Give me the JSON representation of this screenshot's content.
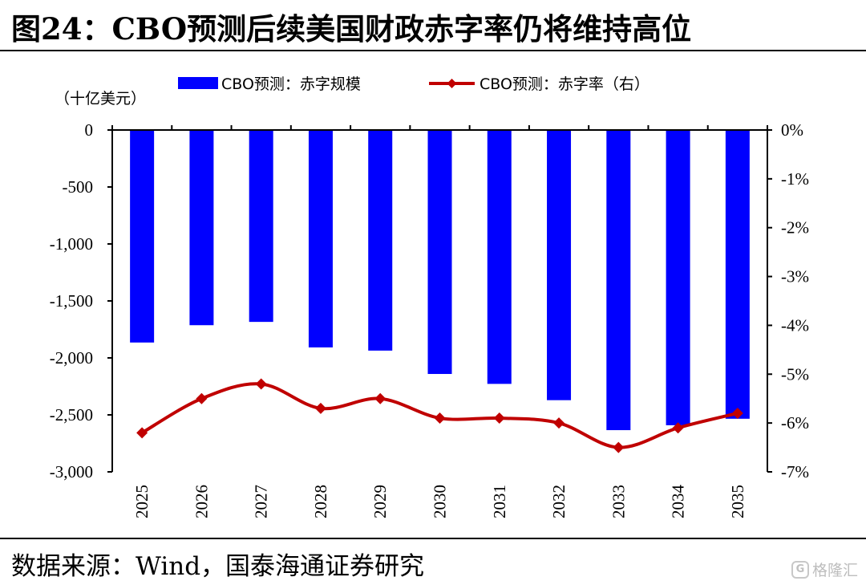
{
  "header": {
    "title": "图24：CBO预测后续美国财政赤字率仍将维持高位"
  },
  "footer": {
    "source": "数据来源：Wind，国泰海通证券研究",
    "watermark_text": "格隆汇",
    "watermark_icon": "G"
  },
  "chart_data": {
    "type": "bar",
    "unit_label": "（十亿美元）",
    "categories": [
      "2025",
      "2026",
      "2027",
      "2028",
      "2029",
      "2030",
      "2031",
      "2032",
      "2033",
      "2034",
      "2035"
    ],
    "series": [
      {
        "name": "CBO预测：赤字规模",
        "type": "bar",
        "axis": "left",
        "color": "#0000ff",
        "values": [
          -1865,
          -1713,
          -1684,
          -1908,
          -1936,
          -2141,
          -2228,
          -2371,
          -2634,
          -2591,
          -2534
        ]
      },
      {
        "name": "CBO预测：赤字率（右）",
        "type": "line",
        "axis": "right",
        "color": "#c00000",
        "values": [
          -6.2,
          -5.5,
          -5.2,
          -5.7,
          -5.5,
          -5.9,
          -5.9,
          -6.0,
          -6.5,
          -6.1,
          -5.8
        ]
      }
    ],
    "y_left": {
      "min": -3000,
      "max": 0,
      "ticks": [
        0,
        -500,
        -1000,
        -1500,
        -2000,
        -2500,
        -3000
      ],
      "tick_labels": [
        "0",
        "-500",
        "-1,000",
        "-1,500",
        "-2,000",
        "-2,500",
        "-3,000"
      ]
    },
    "y_right": {
      "min": -7,
      "max": 0,
      "ticks": [
        0,
        -1,
        -2,
        -3,
        -4,
        -5,
        -6,
        -7
      ],
      "tick_labels": [
        "0%",
        "-1%",
        "-2%",
        "-3%",
        "-4%",
        "-5%",
        "-6%",
        "-7%"
      ]
    },
    "grid": false,
    "legend_position": "top"
  }
}
